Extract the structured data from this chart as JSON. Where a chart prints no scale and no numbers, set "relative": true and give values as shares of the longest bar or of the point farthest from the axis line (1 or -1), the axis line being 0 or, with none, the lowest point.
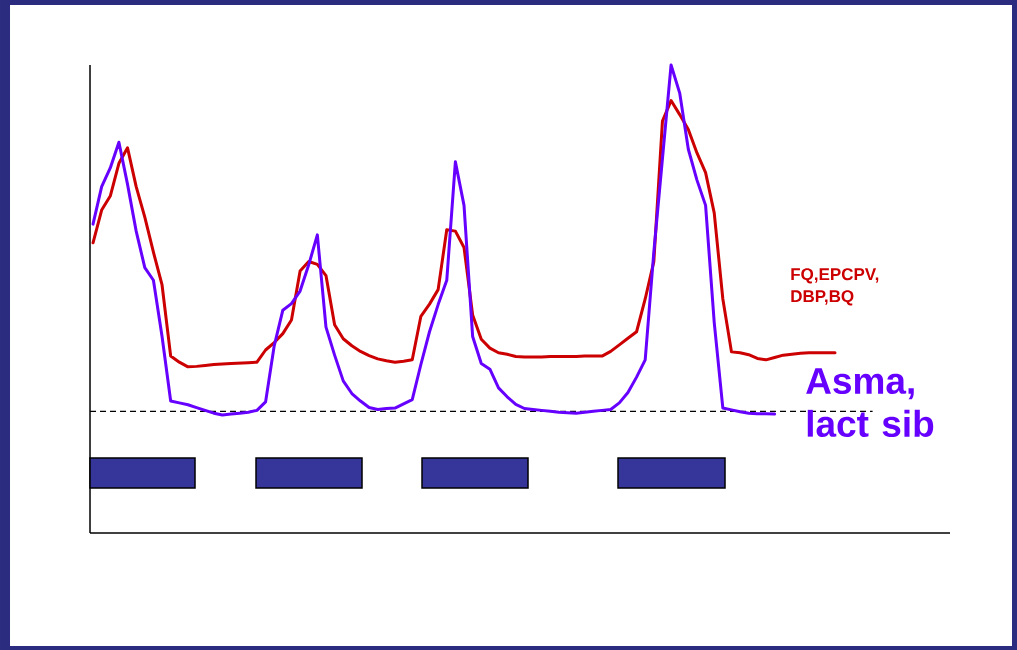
{
  "chart_data": {
    "type": "line",
    "relative": true,
    "tick_labels": false,
    "categories": [
      null,
      null,
      null,
      null,
      null,
      null,
      null,
      null,
      null,
      null,
      null,
      null,
      null,
      null,
      null,
      null,
      null,
      null,
      null,
      null,
      null,
      null,
      null,
      null,
      null,
      null,
      null,
      null,
      null,
      null,
      null,
      null,
      null,
      null,
      null,
      null,
      null,
      null,
      null,
      null,
      null,
      null,
      null,
      null,
      null,
      null,
      null,
      null,
      null,
      null,
      null,
      null,
      null,
      null,
      null,
      null,
      null,
      null,
      null,
      null,
      null,
      null,
      null,
      null,
      null,
      null,
      null,
      null,
      null,
      null,
      null,
      null,
      null,
      null,
      null,
      null,
      null,
      null,
      null,
      null,
      null,
      null,
      null,
      null,
      null,
      null,
      null
    ],
    "series": [
      {
        "name": "FQ,EPCPV, DBP,BQ",
        "color": "#cc0000",
        "values": [
          0.62,
          0.69,
          0.72,
          0.79,
          0.823,
          0.74,
          0.675,
          0.6,
          0.53,
          0.378,
          0.365,
          0.355,
          0.356,
          0.358,
          0.36,
          0.361,
          0.362,
          0.363,
          0.364,
          0.365,
          0.391,
          0.407,
          0.426,
          0.455,
          0.56,
          0.58,
          0.574,
          0.55,
          0.445,
          0.415,
          0.4,
          0.388,
          0.379,
          0.372,
          0.368,
          0.365,
          0.367,
          0.37,
          0.463,
          0.489,
          0.52,
          0.648,
          0.645,
          0.61,
          0.466,
          0.414,
          0.395,
          0.385,
          0.382,
          0.377,
          0.376,
          0.376,
          0.376,
          0.377,
          0.377,
          0.377,
          0.377,
          0.378,
          0.378,
          0.378,
          0.388,
          0.402,
          0.416,
          0.43,
          0.5,
          0.58,
          0.88,
          0.924,
          0.894,
          0.862,
          0.812,
          0.77,
          0.684,
          0.5,
          0.387,
          0.385,
          0.381,
          0.373,
          0.37,
          0.375,
          0.38,
          0.382,
          0.384,
          0.385,
          0.385,
          0.385,
          0.385
        ]
      },
      {
        "name": "Asma, lact sib",
        "color": "#6600ff",
        "values": [
          0.66,
          0.74,
          0.78,
          0.835,
          0.745,
          0.645,
          0.567,
          0.54,
          0.42,
          0.282,
          0.278,
          0.274,
          0.268,
          0.262,
          0.256,
          0.252,
          0.254,
          0.256,
          0.258,
          0.262,
          0.28,
          0.4,
          0.476,
          0.49,
          0.517,
          0.573,
          0.637,
          0.44,
          0.38,
          0.325,
          0.298,
          0.282,
          0.268,
          0.264,
          0.266,
          0.267,
          0.276,
          0.285,
          0.36,
          0.43,
          0.488,
          0.54,
          0.793,
          0.7,
          0.42,
          0.362,
          0.35,
          0.31,
          0.291,
          0.275,
          0.266,
          0.264,
          0.262,
          0.26,
          0.258,
          0.257,
          0.256,
          0.258,
          0.26,
          0.262,
          0.264,
          0.278,
          0.3,
          0.333,
          0.37,
          0.6,
          0.8,
          1,
          0.94,
          0.82,
          0.754,
          0.7,
          0.45,
          0.267,
          0.263,
          0.259,
          0.256,
          0.255,
          0.255,
          0.254,
          null,
          null,
          null,
          null,
          null,
          null,
          null
        ]
      }
    ],
    "ref_lines": [
      {
        "axis": "y",
        "value": 0.26,
        "color": "#000000",
        "line_style": "dashed"
      }
    ]
  }
}
